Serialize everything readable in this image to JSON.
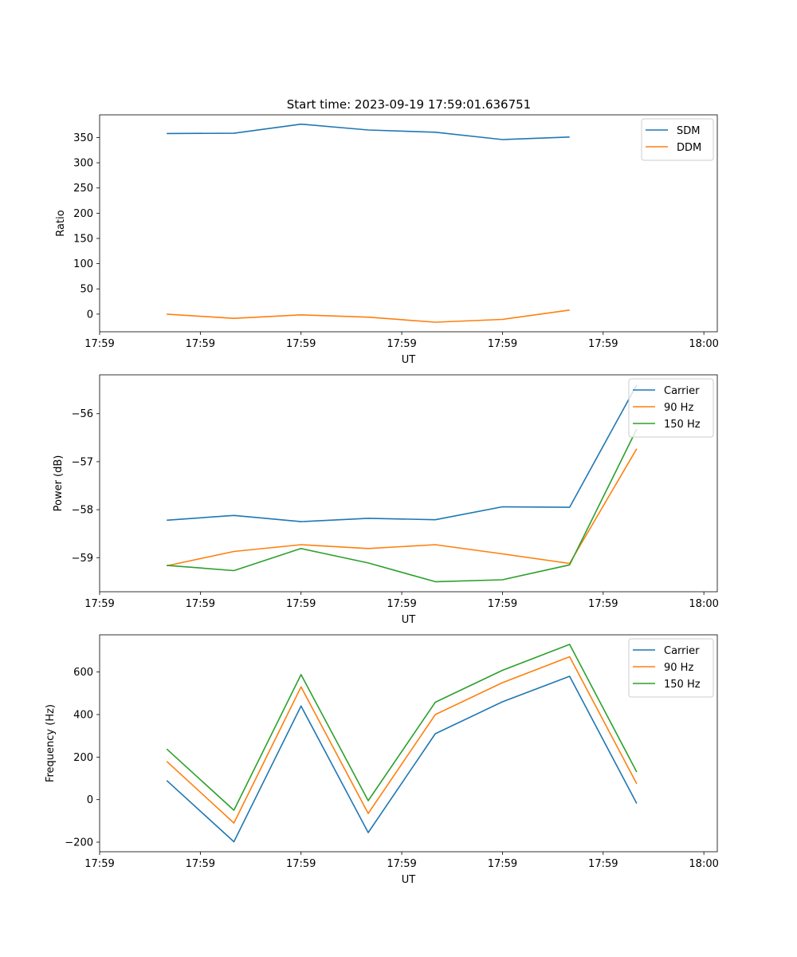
{
  "title": "Start time: 2023-09-19 17:59:01.636751",
  "colors": {
    "blue": "#1f77b4",
    "orange": "#ff7f0e",
    "green": "#2ca02c"
  },
  "chart_data": [
    {
      "type": "line",
      "ylabel": "Ratio",
      "xlabel": "UT",
      "x": [
        0.5,
        1.0,
        1.5,
        2.0,
        2.5,
        3.0,
        3.5
      ],
      "xlim": [
        0.0,
        4.6
      ],
      "xticks": [
        0.0,
        0.75,
        1.5,
        2.25,
        3.0,
        3.75,
        4.5
      ],
      "xtick_labels": [
        "17:59",
        "17:59",
        "17:59",
        "17:59",
        "17:59",
        "17:59",
        "18:00"
      ],
      "ylim": [
        -35,
        395
      ],
      "yticks": [
        0,
        50,
        100,
        150,
        200,
        250,
        300,
        350
      ],
      "ytick_labels": [
        "0",
        "50",
        "100",
        "150",
        "200",
        "250",
        "300",
        "350"
      ],
      "legend": "top-right",
      "series": [
        {
          "name": "SDM",
          "color": "#1f77b4",
          "values": [
            358,
            358.5,
            376.5,
            365,
            360.5,
            346,
            351
          ]
        },
        {
          "name": "DDM",
          "color": "#ff7f0e",
          "values": [
            0,
            -8.5,
            -1.5,
            -6,
            -16,
            -10.5,
            8
          ]
        }
      ]
    },
    {
      "type": "line",
      "ylabel": "Power (dB)",
      "xlabel": "UT",
      "x": [
        0.5,
        1.0,
        1.5,
        2.0,
        2.5,
        3.0,
        3.5,
        4.0
      ],
      "xlim": [
        0.0,
        4.6
      ],
      "xticks": [
        0.0,
        0.75,
        1.5,
        2.25,
        3.0,
        3.75,
        4.5
      ],
      "xtick_labels": [
        "17:59",
        "17:59",
        "17:59",
        "17:59",
        "17:59",
        "17:59",
        "18:00"
      ],
      "ylim": [
        -59.71,
        -55.19
      ],
      "yticks": [
        -59,
        -58,
        -57,
        -56
      ],
      "ytick_labels": [
        "−59",
        "−58",
        "−57",
        "−56"
      ],
      "legend": "top-right",
      "series": [
        {
          "name": "Carrier",
          "color": "#1f77b4",
          "values": [
            -58.22,
            -58.12,
            -58.25,
            -58.18,
            -58.21,
            -57.94,
            -57.95,
            -55.4
          ]
        },
        {
          "name": "90 Hz",
          "color": "#ff7f0e",
          "values": [
            -59.17,
            -58.87,
            -58.73,
            -58.81,
            -58.73,
            -58.92,
            -59.12,
            -56.73
          ]
        },
        {
          "name": "150 Hz",
          "color": "#2ca02c",
          "values": [
            -59.16,
            -59.27,
            -58.81,
            -59.11,
            -59.5,
            -59.46,
            -59.15,
            -56.32
          ]
        }
      ]
    },
    {
      "type": "line",
      "ylabel": "Frequency (Hz)",
      "xlabel": "UT",
      "x": [
        0.5,
        1.0,
        1.5,
        2.0,
        2.5,
        3.0,
        3.5,
        4.0
      ],
      "xlim": [
        0.0,
        4.6
      ],
      "xticks": [
        0.0,
        0.75,
        1.5,
        2.25,
        3.0,
        3.75,
        4.5
      ],
      "xtick_labels": [
        "17:59",
        "17:59",
        "17:59",
        "17:59",
        "17:59",
        "17:59",
        "18:00"
      ],
      "ylim": [
        -245,
        775
      ],
      "yticks": [
        -200,
        0,
        200,
        400,
        600
      ],
      "ytick_labels": [
        "−200",
        "0",
        "200",
        "400",
        "600"
      ],
      "legend": "top-right",
      "series": [
        {
          "name": "Carrier",
          "color": "#1f77b4",
          "values": [
            90,
            -198,
            440,
            -155,
            310,
            460,
            580,
            -18
          ]
        },
        {
          "name": "90 Hz",
          "color": "#ff7f0e",
          "values": [
            180,
            -110,
            530,
            -65,
            400,
            550,
            672,
            75
          ]
        },
        {
          "name": "150 Hz",
          "color": "#2ca02c",
          "values": [
            238,
            -50,
            588,
            -5,
            458,
            608,
            730,
            130
          ]
        }
      ]
    }
  ]
}
